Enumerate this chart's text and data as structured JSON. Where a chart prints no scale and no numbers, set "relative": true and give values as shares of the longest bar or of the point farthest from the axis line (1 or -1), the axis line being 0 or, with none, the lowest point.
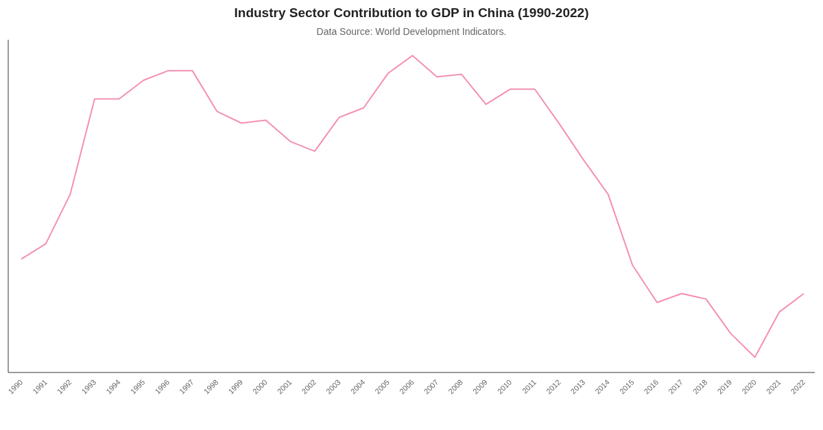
{
  "chart_data": {
    "type": "line",
    "title": "Industry Sector Contribution to GDP in China (1990-2022)",
    "subtitle": "Data Source: World Development Indicators.",
    "relative": true,
    "categories": [
      "1990",
      "1991",
      "1992",
      "1993",
      "1994",
      "1995",
      "1996",
      "1997",
      "1998",
      "1999",
      "2000",
      "2001",
      "2002",
      "2003",
      "2004",
      "2005",
      "2006",
      "2007",
      "2008",
      "2009",
      "2010",
      "2011",
      "2012",
      "2013",
      "2014",
      "2015",
      "2016",
      "2017",
      "2018",
      "2019",
      "2020",
      "2021",
      "2022"
    ],
    "series": [
      {
        "color": "#f48fb1",
        "values": [
          0.358,
          0.406,
          0.562,
          0.863,
          0.863,
          0.922,
          0.952,
          0.952,
          0.824,
          0.787,
          0.796,
          0.729,
          0.698,
          0.805,
          0.835,
          0.944,
          1,
          0.933,
          0.941,
          0.846,
          0.894,
          0.894,
          0.785,
          0.67,
          0.562,
          0.338,
          0.221,
          0.249,
          0.232,
          0.124,
          0.048,
          0.191,
          0.249
        ]
      }
    ],
    "grid": false,
    "legend": false,
    "marker": "none",
    "line_style": "solid"
  }
}
